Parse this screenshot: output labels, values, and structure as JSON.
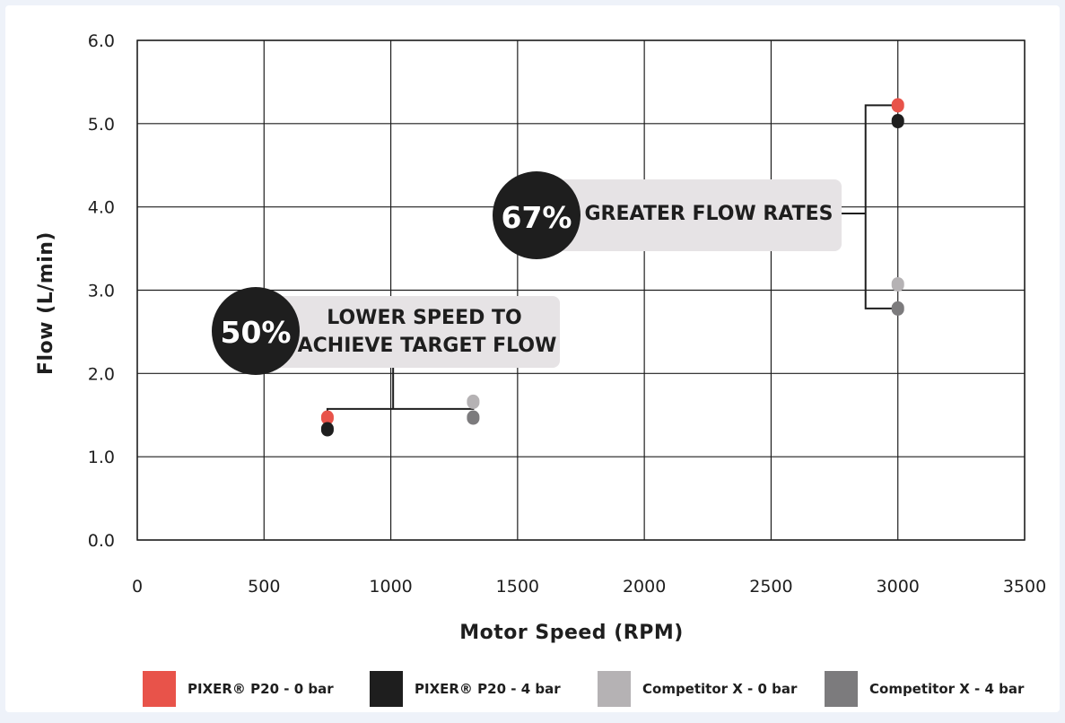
{
  "chart_data": {
    "type": "scatter",
    "title": "",
    "xlabel": "Motor Speed (RPM)",
    "ylabel": "Flow (L/min)",
    "xlim": [
      0,
      3500
    ],
    "ylim": [
      0,
      6
    ],
    "xticks": [
      0,
      500,
      1000,
      1500,
      2000,
      2500,
      3000,
      3500
    ],
    "yticks": [
      0,
      1,
      2,
      3,
      4,
      5,
      6
    ],
    "xtick_labels": [
      "0",
      "500",
      "1000",
      "1500",
      "2000",
      "2500",
      "3000",
      "3500"
    ],
    "ytick_labels": [
      "0.0",
      "1.0",
      "2.0",
      "3.0",
      "4.0",
      "5.0",
      "6.0"
    ],
    "grid": true,
    "legend_position": "bottom",
    "series": [
      {
        "name": "PIXER® P20 - 0 bar",
        "color": "#e8534a",
        "points": [
          {
            "x": 750,
            "y": 1.47
          },
          {
            "x": 3000,
            "y": 5.22
          }
        ]
      },
      {
        "name": "PIXER® P20 - 4 bar",
        "color": "#1e1e1e",
        "points": [
          {
            "x": 750,
            "y": 1.33
          },
          {
            "x": 3000,
            "y": 5.03
          }
        ]
      },
      {
        "name": "Competitor X - 0 bar",
        "color": "#b5b2b4",
        "points": [
          {
            "x": 1325,
            "y": 1.66
          },
          {
            "x": 3000,
            "y": 3.07
          }
        ]
      },
      {
        "name": "Competitor X - 4 bar",
        "color": "#7c7b7d",
        "points": [
          {
            "x": 1325,
            "y": 1.47
          },
          {
            "x": 3000,
            "y": 2.78
          }
        ]
      }
    ],
    "annotations": [
      {
        "percent": "50%",
        "lines": [
          "LOWER SPEED TO",
          "ACHIEVE TARGET FLOW"
        ]
      },
      {
        "percent": "67%",
        "lines": [
          "GREATER FLOW RATES"
        ]
      }
    ]
  }
}
